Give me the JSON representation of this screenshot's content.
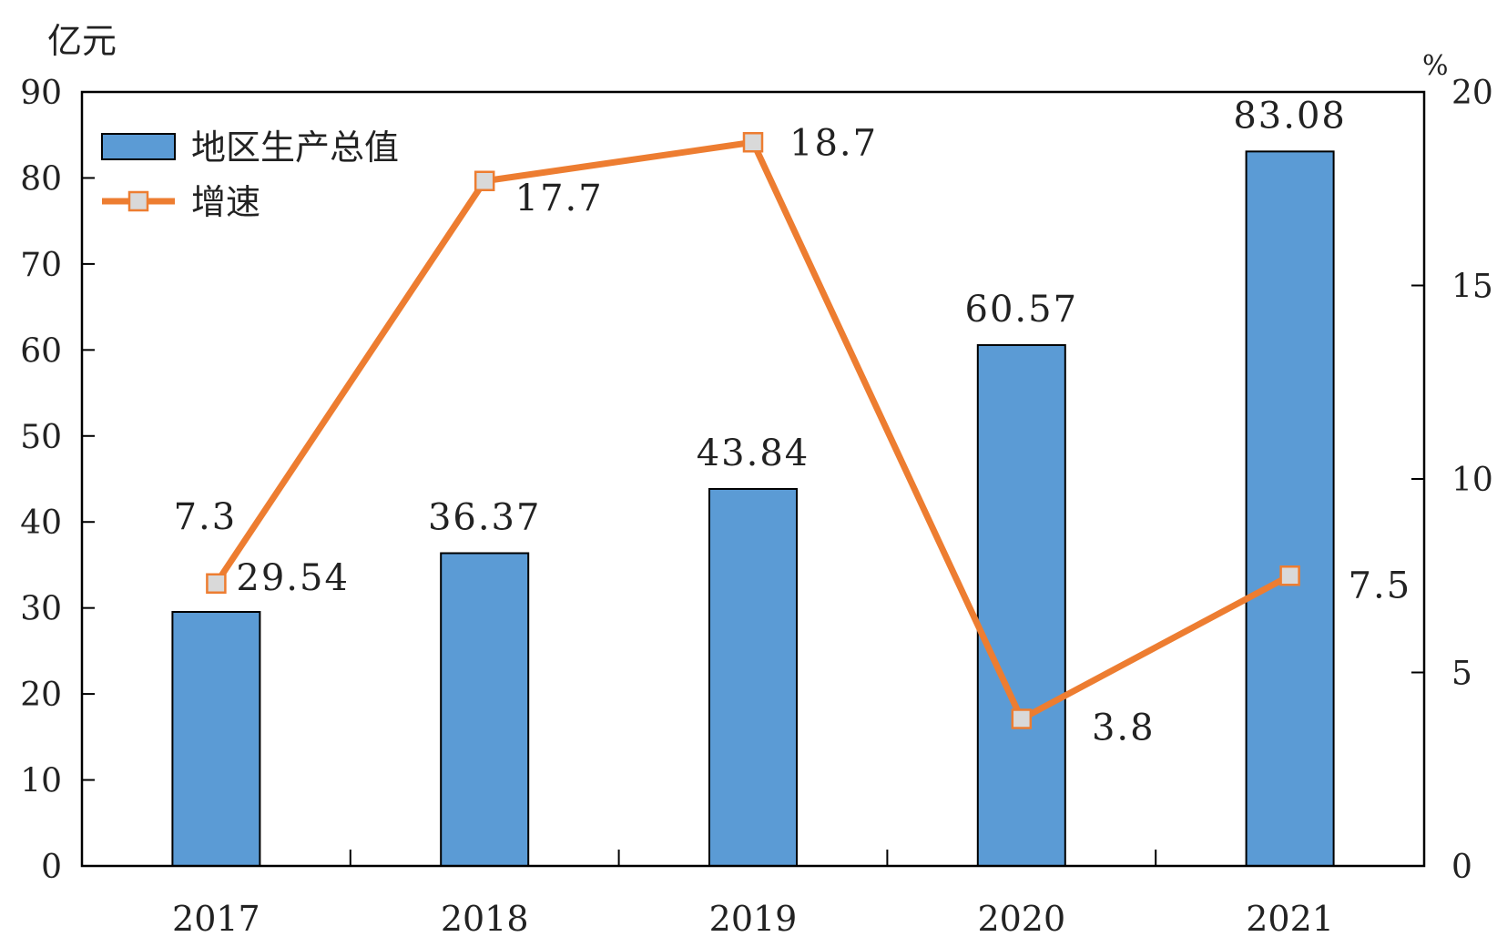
{
  "chart_data": {
    "type": "bar+line",
    "categories": [
      "2017",
      "2018",
      "2019",
      "2020",
      "2021"
    ],
    "series": [
      {
        "name": "地区生产总值",
        "type": "bar",
        "axis": "left",
        "values": [
          29.54,
          36.37,
          43.84,
          60.57,
          83.08
        ],
        "labels": [
          "29.54",
          "36.37",
          "43.84",
          "60.57",
          "83.08"
        ],
        "color": "#5B9BD5"
      },
      {
        "name": "增速",
        "type": "line",
        "axis": "right",
        "values": [
          7.3,
          17.7,
          18.7,
          3.8,
          7.5
        ],
        "labels": [
          "7.3",
          "17.7",
          "18.7",
          "3.8",
          "7.5"
        ],
        "color": "#ED7D31",
        "marker_color": "#D9D9D9"
      }
    ],
    "left_axis": {
      "unit": "亿元",
      "min": 0,
      "max": 90,
      "ticks": [
        "0",
        "10",
        "20",
        "30",
        "40",
        "50",
        "60",
        "70",
        "80",
        "90"
      ]
    },
    "right_axis": {
      "unit": "%",
      "min": 0,
      "max": 20,
      "ticks": [
        "0",
        "5",
        "10",
        "15",
        "20"
      ]
    },
    "legend_position": "top-left",
    "grid": false
  }
}
